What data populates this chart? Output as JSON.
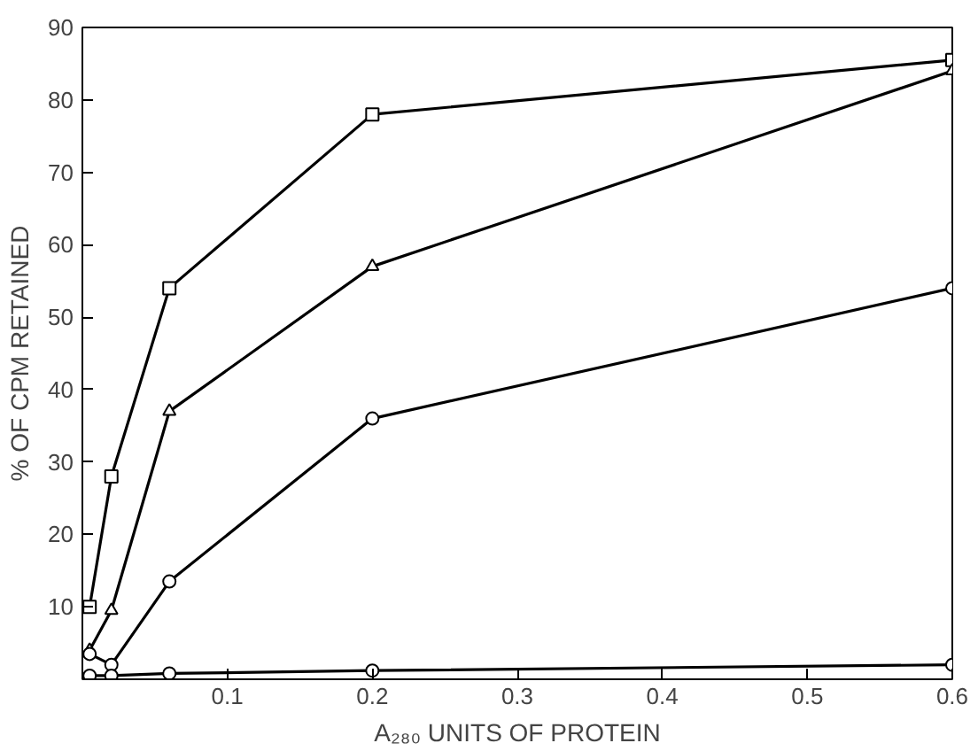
{
  "chart_data": {
    "type": "line",
    "xlabel": "A₂₈₀ UNITS OF PROTEIN",
    "ylabel": "% OF CPM RETAINED",
    "xlim": [
      0,
      0.6
    ],
    "ylim": [
      0,
      90
    ],
    "xticks": [
      0.1,
      0.2,
      0.3,
      0.4,
      0.5,
      0.6
    ],
    "yticks": [
      {
        "value": 0,
        "label": null
      },
      10,
      20,
      30,
      40,
      50,
      60,
      70,
      80,
      90
    ],
    "grid": false,
    "line_style": "solid",
    "series": [
      {
        "color": "#000000",
        "marker": "square",
        "x": [
          0.005,
          0.02,
          0.06,
          0.2,
          0.6
        ],
        "values": [
          10,
          28,
          54,
          78,
          85.5
        ]
      },
      {
        "color": "#000000",
        "marker": "triangle",
        "x": [
          0.005,
          0.02,
          0.06,
          0.2,
          0.6
        ],
        "values": [
          4,
          9.5,
          37,
          57,
          84
        ]
      },
      {
        "color": "#000000",
        "marker": "circle",
        "x": [
          0.005,
          0.02,
          0.06,
          0.2,
          0.6
        ],
        "values": [
          3.5,
          2,
          13.5,
          36,
          54
        ]
      },
      {
        "color": "#000000",
        "marker": "circle",
        "x": [
          0.005,
          0.02,
          0.06,
          0.2,
          0.6
        ],
        "values": [
          0.5,
          0.5,
          0.8,
          1.2,
          2
        ]
      }
    ]
  }
}
